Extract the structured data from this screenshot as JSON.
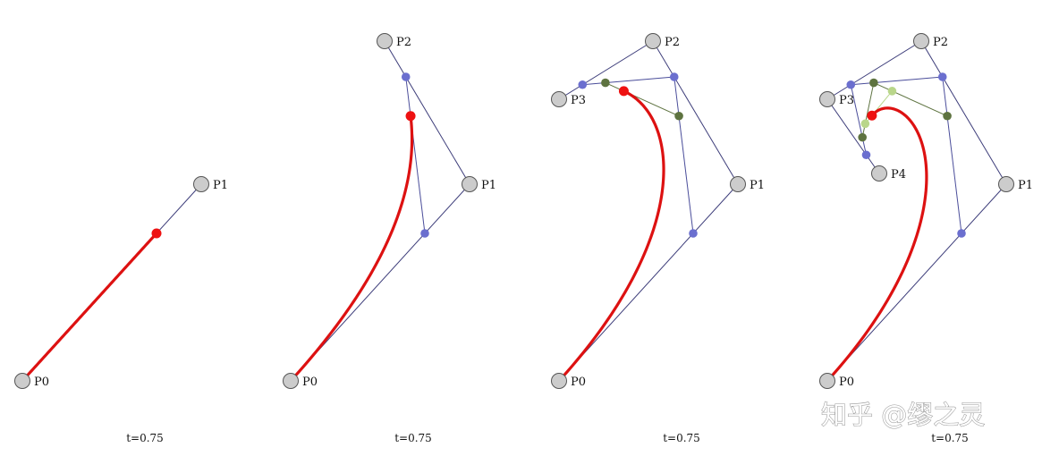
{
  "panels": [
    {
      "name": "linear",
      "t_label": "t=0.75",
      "control_points": [
        {
          "label": "P0",
          "x": 0,
          "y": 0
        },
        {
          "label": "P1",
          "x": 200,
          "y": 220
        }
      ]
    },
    {
      "name": "quadratic",
      "t_label": "t=0.75",
      "control_points": [
        {
          "label": "P0",
          "x": 0,
          "y": 0
        },
        {
          "label": "P1",
          "x": 200,
          "y": 220
        },
        {
          "label": "P2",
          "x": 105,
          "y": 380
        }
      ]
    },
    {
      "name": "cubic",
      "t_label": "t=0.75",
      "control_points": [
        {
          "label": "P0",
          "x": 0,
          "y": 0
        },
        {
          "label": "P1",
          "x": 200,
          "y": 220
        },
        {
          "label": "P2",
          "x": 105,
          "y": 380
        },
        {
          "label": "P3",
          "x": 0,
          "y": 315
        }
      ]
    },
    {
      "name": "quartic",
      "t_label": "t=0.75",
      "control_points": [
        {
          "label": "P0",
          "x": 0,
          "y": 0
        },
        {
          "label": "P1",
          "x": 200,
          "y": 220
        },
        {
          "label": "P2",
          "x": 105,
          "y": 380
        },
        {
          "label": "P3",
          "x": 0,
          "y": 315
        },
        {
          "label": "P4",
          "x": 58,
          "y": 232
        }
      ]
    }
  ],
  "t": 0.75,
  "colors": {
    "control_point_fill": "#cccccc",
    "control_point_stroke": "#555555",
    "polygon": "#3d3d7a",
    "level1": "#6b6fcf",
    "level1_line": "#4a4d9a",
    "level2": "#5e7340",
    "level3": "#b9d68a",
    "curve": "#dd1111",
    "point": "#ee1111"
  },
  "watermark": "知乎 @缪之灵"
}
